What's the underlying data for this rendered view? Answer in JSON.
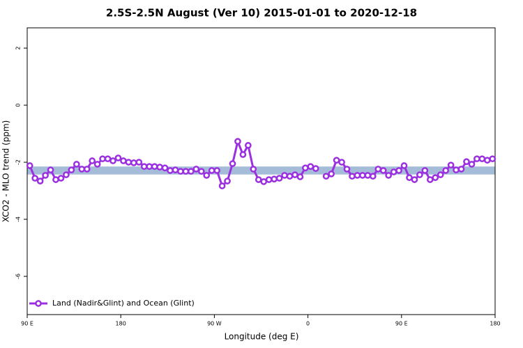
{
  "chart_data": {
    "type": "line",
    "title": "2.5S-2.5N August (Ver 10)   2015-01-01 to 2020-12-18",
    "x_label": "Longitude (deg E)",
    "y_label": "XCO2 - MLO trend (ppm)",
    "xlim": [
      90,
      540
    ],
    "ylim": [
      -7.34,
      2.71
    ],
    "xticks": [
      {
        "value": 90,
        "label": "90 E"
      },
      180,
      {
        "value": 270,
        "label": "90 W"
      },
      {
        "value": 360,
        "label": "0"
      },
      {
        "value": 450,
        "label": "90 E"
      },
      {
        "value": 540,
        "label": "180"
      }
    ],
    "yticks": [
      -6,
      -4,
      -2,
      0,
      2
    ],
    "band_range": [
      -2.43,
      -2.15
    ],
    "band_color": "#a5bcd9",
    "x": [
      92.5,
      97.5,
      102.5,
      107.5,
      112.5,
      117.5,
      122.5,
      127.5,
      132.5,
      137.5,
      142.5,
      147.5,
      152.5,
      157.5,
      162.5,
      167.5,
      172.5,
      177.5,
      182.5,
      187.5,
      192.5,
      197.5,
      202.5,
      207.5,
      212.5,
      217.5,
      222.5,
      227.5,
      232.5,
      237.5,
      242.5,
      247.5,
      252.5,
      257.5,
      262.5,
      267.5,
      272.5,
      277.5,
      282.5,
      287.5,
      292.5,
      297.5,
      302.5,
      307.5,
      312.5,
      317.5,
      322.5,
      327.5,
      332.5,
      337.5,
      342.5,
      347.5,
      352.5,
      357.5,
      362.5,
      367.5,
      372.5,
      377.5,
      382.5,
      387.5,
      392.5,
      397.5,
      402.5,
      407.5,
      412.5,
      417.5,
      422.5,
      427.5,
      432.5,
      437.5,
      442.5,
      447.5,
      452.5,
      457.5,
      462.5,
      467.5,
      472.5,
      477.5,
      482.5,
      487.5,
      492.5,
      497.5,
      502.5,
      507.5,
      512.5,
      517.5,
      522.5,
      527.5,
      532.5,
      537.5
    ],
    "series": [
      {
        "name": "Land (Nadir&Glint) and Ocean (Glint)",
        "color": "#9b30e0",
        "values": [
          -2.12,
          -2.56,
          -2.66,
          -2.46,
          -2.27,
          -2.61,
          -2.56,
          -2.44,
          -2.27,
          -2.07,
          -2.24,
          -2.24,
          -1.95,
          -2.07,
          -1.88,
          -1.88,
          -1.95,
          -1.85,
          -1.95,
          -2.0,
          -2.02,
          -2.0,
          -2.15,
          -2.15,
          -2.15,
          -2.17,
          -2.2,
          -2.29,
          -2.27,
          -2.32,
          -2.32,
          -2.32,
          -2.24,
          -2.32,
          -2.46,
          -2.29,
          -2.29,
          -2.83,
          -2.66,
          -2.05,
          -1.27,
          -1.73,
          -1.41,
          -2.24,
          -2.61,
          -2.68,
          -2.61,
          -2.59,
          -2.56,
          -2.46,
          -2.49,
          -2.44,
          -2.51,
          -2.2,
          -2.15,
          -2.22,
          null,
          -2.49,
          -2.41,
          -1.93,
          -2.0,
          -2.24,
          -2.49,
          -2.46,
          -2.46,
          -2.46,
          -2.49,
          -2.24,
          -2.29,
          -2.46,
          -2.34,
          -2.29,
          -2.12,
          -2.54,
          -2.61,
          -2.44,
          -2.29,
          -2.61,
          -2.54,
          -2.44,
          -2.29,
          -2.1,
          -2.27,
          -2.24,
          -1.98,
          -2.07,
          -1.88,
          -1.88,
          -1.93,
          -1.88
        ]
      }
    ]
  }
}
